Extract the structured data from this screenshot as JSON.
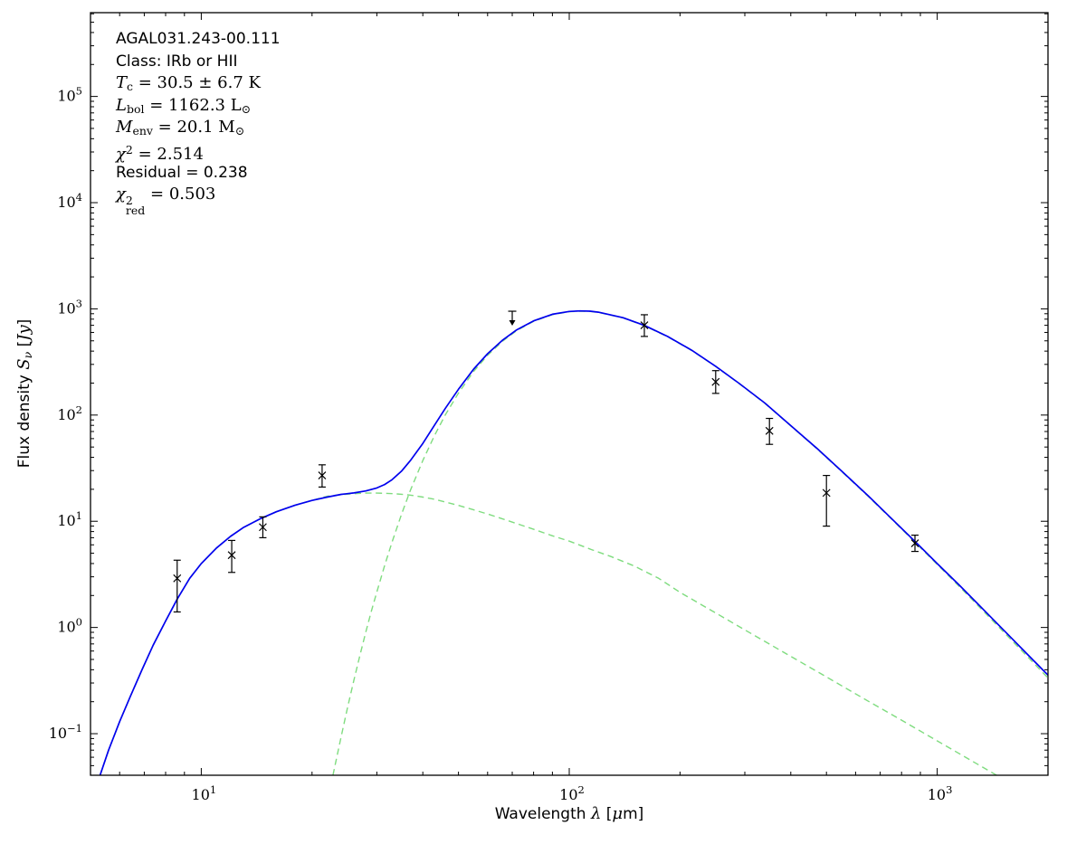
{
  "figure": {
    "background": "#ffffff",
    "annotation_lines": [
      {
        "segments": [
          {
            "t": "AGAL031.243-00.111",
            "s": "sans"
          }
        ]
      },
      {
        "segments": [
          {
            "t": "Class: IRb or HII",
            "s": "sans"
          }
        ]
      },
      {
        "segments": [
          {
            "t": "T",
            "s": "it"
          },
          {
            "t": "c",
            "s": "sub"
          },
          {
            "t": " = 30.5 ± 6.7 K",
            "s": "rm"
          }
        ]
      },
      {
        "segments": [
          {
            "t": "L",
            "s": "it"
          },
          {
            "t": "bol",
            "s": "sub"
          },
          {
            "t": " = 1162.3 L",
            "s": "rm"
          },
          {
            "t": "⊙",
            "s": "sub"
          }
        ]
      },
      {
        "segments": [
          {
            "t": "M",
            "s": "it"
          },
          {
            "t": "env",
            "s": "sub"
          },
          {
            "t": " = 20.1 M",
            "s": "rm"
          },
          {
            "t": "⊙",
            "s": "sub"
          }
        ]
      },
      {
        "segments": [
          {
            "t": "χ",
            "s": "it"
          },
          {
            "t": "2",
            "s": "sup"
          },
          {
            "t": " = 2.514",
            "s": "rm"
          }
        ]
      },
      {
        "segments": [
          {
            "t": "Residual = 0.238",
            "s": "sans"
          }
        ]
      },
      {
        "segments": [
          {
            "t": "χ",
            "s": "it"
          },
          {
            "t": "2|red",
            "s": "supsub"
          },
          {
            "t": " = 0.503",
            "s": "rm"
          }
        ]
      }
    ],
    "x_axis": {
      "label_segments": [
        {
          "t": "Wavelength ",
          "s": "sans"
        },
        {
          "t": "λ",
          "s": "it"
        },
        {
          "t": " [",
          "s": "sans"
        },
        {
          "t": "μ",
          "s": "it"
        },
        {
          "t": "m]",
          "s": "sans"
        }
      ],
      "tick_exponents": [
        1,
        2,
        3
      ]
    },
    "y_axis": {
      "label_segments": [
        {
          "t": "Flux density ",
          "s": "sans"
        },
        {
          "t": "S",
          "s": "it"
        },
        {
          "t": "ν",
          "s": "subit"
        },
        {
          "t": " [",
          "s": "sans"
        },
        {
          "t": "Jy",
          "s": "it"
        },
        {
          "t": "]",
          "s": "sans"
        }
      ],
      "tick_exponents": [
        -1,
        0,
        1,
        2,
        3,
        4,
        5
      ]
    }
  },
  "chart_data": {
    "type": "line",
    "title": "",
    "xlabel": "Wavelength λ [μm]",
    "ylabel": "Flux density Sν [Jy]",
    "x_scale": "log",
    "y_scale": "log",
    "xlim": [
      5,
      2000
    ],
    "ylim": [
      0.0406,
      615000
    ],
    "grid": false,
    "legend": "none",
    "fit_parameters": {
      "source": "AGAL031.243-00.111",
      "class": "IRb or HII",
      "T_c_K": 30.5,
      "T_c_err_K": 6.7,
      "L_bol_Lsun": 1162.3,
      "M_env_Msun": 20.1,
      "chi2": 2.514,
      "residual": 0.238,
      "chi2_red": 0.503
    },
    "series": [
      {
        "name": "warm-component",
        "style": "dashed",
        "color": "#7fdc7f",
        "width": 1.4,
        "points": [
          [
            5.3,
            0.04
          ],
          [
            5.6,
            0.07
          ],
          [
            6.0,
            0.13
          ],
          [
            6.4,
            0.22
          ],
          [
            6.9,
            0.4
          ],
          [
            7.4,
            0.68
          ],
          [
            8.0,
            1.15
          ],
          [
            8.6,
            1.85
          ],
          [
            9.3,
            2.9
          ],
          [
            10,
            4.0
          ],
          [
            11,
            5.6
          ],
          [
            12,
            7.2
          ],
          [
            13,
            8.7
          ],
          [
            14.5,
            10.6
          ],
          [
            16,
            12.3
          ],
          [
            18,
            14.2
          ],
          [
            20,
            15.7
          ],
          [
            22,
            17.2
          ],
          [
            24,
            17.8
          ],
          [
            26,
            18.2
          ],
          [
            28,
            18.4
          ],
          [
            30,
            18.4
          ],
          [
            32,
            18.3
          ],
          [
            34,
            18.1
          ],
          [
            36,
            17.8
          ],
          [
            38,
            17.4
          ],
          [
            40,
            16.9
          ],
          [
            43,
            16.1
          ],
          [
            46,
            15.2
          ],
          [
            50,
            14.1
          ],
          [
            55,
            12.8
          ],
          [
            60,
            11.7
          ],
          [
            66,
            10.5
          ],
          [
            72,
            9.5
          ],
          [
            80,
            8.4
          ],
          [
            90,
            7.3
          ],
          [
            100,
            6.5
          ],
          [
            115,
            5.4
          ],
          [
            130,
            4.65
          ],
          [
            150,
            3.8
          ],
          [
            175,
            2.9
          ],
          [
            200,
            2.14
          ],
          [
            250,
            1.37
          ],
          [
            300,
            0.95
          ],
          [
            400,
            0.534
          ],
          [
            500,
            0.342
          ],
          [
            650,
            0.202
          ],
          [
            800,
            0.134
          ],
          [
            1000,
            0.0855
          ],
          [
            1300,
            0.0506
          ],
          [
            1450,
            0.0406
          ]
        ]
      },
      {
        "name": "cold-component",
        "style": "dashed",
        "color": "#7fdc7f",
        "width": 1.4,
        "points": [
          [
            22.8,
            0.0406
          ],
          [
            24,
            0.094
          ],
          [
            25,
            0.179
          ],
          [
            26,
            0.32
          ],
          [
            27,
            0.55
          ],
          [
            28,
            0.905
          ],
          [
            29,
            1.43
          ],
          [
            30,
            2.16
          ],
          [
            31.5,
            3.83
          ],
          [
            33,
            6.36
          ],
          [
            35,
            11.6
          ],
          [
            37,
            19.5
          ],
          [
            40,
            37.3
          ],
          [
            43,
            63.8
          ],
          [
            46,
            99.8
          ],
          [
            50,
            161
          ],
          [
            55,
            258
          ],
          [
            60,
            366
          ],
          [
            66,
            499
          ],
          [
            72,
            625
          ],
          [
            80,
            763
          ],
          [
            90,
            882
          ],
          [
            100,
            939
          ],
          [
            107,
            950
          ],
          [
            114,
            945
          ],
          [
            120,
            925
          ],
          [
            140,
            822
          ],
          [
            160,
            695
          ],
          [
            185,
            547
          ],
          [
            215,
            406
          ],
          [
            250,
            287
          ],
          [
            290,
            197
          ],
          [
            340,
            129
          ],
          [
            400,
            79
          ],
          [
            470,
            48.5
          ],
          [
            550,
            29.4
          ],
          [
            650,
            17.1
          ],
          [
            760,
            10.1
          ],
          [
            870,
            6.35
          ],
          [
            1000,
            3.93
          ],
          [
            1150,
            2.42
          ],
          [
            1350,
            1.37
          ],
          [
            1600,
            0.745
          ],
          [
            1800,
            0.489
          ],
          [
            2000,
            0.335
          ]
        ]
      },
      {
        "name": "total-fit",
        "style": "solid",
        "color": "#0000ee",
        "width": 1.7,
        "points": [
          [
            5.3,
            0.04
          ],
          [
            5.6,
            0.07
          ],
          [
            6.0,
            0.13
          ],
          [
            6.4,
            0.22
          ],
          [
            6.9,
            0.4
          ],
          [
            7.4,
            0.68
          ],
          [
            8.0,
            1.15
          ],
          [
            8.6,
            1.85
          ],
          [
            9.3,
            2.9
          ],
          [
            10,
            4.0
          ],
          [
            11,
            5.6
          ],
          [
            12,
            7.2
          ],
          [
            13,
            8.7
          ],
          [
            14.5,
            10.6
          ],
          [
            16,
            12.3
          ],
          [
            18,
            14.2
          ],
          [
            20,
            15.7
          ],
          [
            22,
            16.9
          ],
          [
            24,
            17.9
          ],
          [
            26,
            18.5
          ],
          [
            28,
            19.3
          ],
          [
            30,
            20.6
          ],
          [
            31.5,
            22.2
          ],
          [
            33,
            24.6
          ],
          [
            35,
            29.6
          ],
          [
            37,
            37.2
          ],
          [
            40,
            54
          ],
          [
            43,
            80
          ],
          [
            46,
            115
          ],
          [
            50,
            175
          ],
          [
            55,
            271
          ],
          [
            60,
            378
          ],
          [
            66,
            510
          ],
          [
            72,
            635
          ],
          [
            80,
            771
          ],
          [
            90,
            889
          ],
          [
            100,
            946
          ],
          [
            107,
            956
          ],
          [
            114,
            950
          ],
          [
            120,
            930
          ],
          [
            140,
            826
          ],
          [
            160,
            699
          ],
          [
            185,
            550
          ],
          [
            215,
            408
          ],
          [
            250,
            288
          ],
          [
            290,
            198
          ],
          [
            340,
            130
          ],
          [
            400,
            79.5
          ],
          [
            470,
            48.9
          ],
          [
            550,
            29.7
          ],
          [
            650,
            17.3
          ],
          [
            760,
            10.2
          ],
          [
            870,
            6.46
          ],
          [
            1000,
            4.0
          ],
          [
            1150,
            2.49
          ],
          [
            1350,
            1.42
          ],
          [
            1600,
            0.78
          ],
          [
            1800,
            0.515
          ],
          [
            2000,
            0.356
          ]
        ]
      }
    ],
    "data_points": [
      {
        "wavelength_um": 8.6,
        "flux_jy": 2.9,
        "flux_lo": 1.4,
        "flux_hi": 4.3
      },
      {
        "wavelength_um": 12.1,
        "flux_jy": 4.8,
        "flux_lo": 3.3,
        "flux_hi": 6.6
      },
      {
        "wavelength_um": 14.7,
        "flux_jy": 8.8,
        "flux_lo": 7.0,
        "flux_hi": 11.0
      },
      {
        "wavelength_um": 21.3,
        "flux_jy": 27,
        "flux_lo": 21,
        "flux_hi": 34
      },
      {
        "wavelength_um": 160,
        "flux_jy": 700,
        "flux_lo": 550,
        "flux_hi": 880
      },
      {
        "wavelength_um": 250,
        "flux_jy": 205,
        "flux_lo": 160,
        "flux_hi": 262
      },
      {
        "wavelength_um": 350,
        "flux_jy": 71,
        "flux_lo": 53,
        "flux_hi": 93
      },
      {
        "wavelength_um": 500,
        "flux_jy": 18.5,
        "flux_lo": 9.0,
        "flux_hi": 27
      },
      {
        "wavelength_um": 870,
        "flux_jy": 6.2,
        "flux_lo": 5.2,
        "flux_hi": 7.4
      }
    ],
    "upper_limits": [
      {
        "wavelength_um": 70,
        "flux_jy": 950
      }
    ]
  }
}
